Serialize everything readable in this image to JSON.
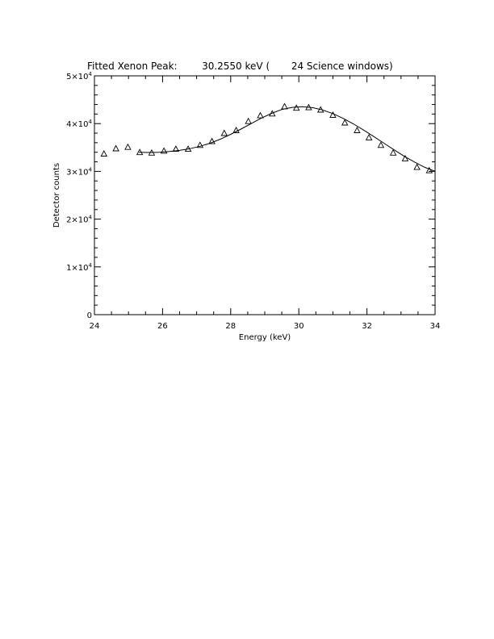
{
  "chart_data": {
    "type": "scatter",
    "title": "Fitted Xenon Peak:        30.2550 keV (       24 Science windows)",
    "xlabel": "Energy (keV)",
    "ylabel": "Detector counts",
    "xlim": [
      24,
      34
    ],
    "ylim": [
      0,
      50000
    ],
    "grid": false,
    "legend": "none",
    "x_ticks": [
      {
        "value": 24,
        "label": "24"
      },
      {
        "value": 26,
        "label": "26"
      },
      {
        "value": 28,
        "label": "28"
      },
      {
        "value": 30,
        "label": "30"
      },
      {
        "value": 32,
        "label": "32"
      },
      {
        "value": 34,
        "label": "34"
      }
    ],
    "y_ticks": [
      {
        "value": 0,
        "mantissa": "0",
        "base": "",
        "exp": ""
      },
      {
        "value": 10000,
        "mantissa": "1",
        "base": "×10",
        "exp": "4"
      },
      {
        "value": 20000,
        "mantissa": "2",
        "base": "×10",
        "exp": "4"
      },
      {
        "value": 30000,
        "mantissa": "3",
        "base": "×10",
        "exp": "4"
      },
      {
        "value": 40000,
        "mantissa": "4",
        "base": "×10",
        "exp": "4"
      },
      {
        "value": 50000,
        "mantissa": "5",
        "base": "×10",
        "exp": "4"
      }
    ],
    "series": [
      {
        "kind": "points",
        "marker": "triangle",
        "x": [
          24.28,
          24.63,
          24.98,
          25.33,
          25.68,
          26.04,
          26.39,
          26.75,
          27.1,
          27.45,
          27.81,
          28.16,
          28.52,
          28.87,
          29.22,
          29.58,
          29.93,
          30.29,
          30.64,
          31.0,
          31.35,
          31.71,
          32.06,
          32.41,
          32.77,
          33.12,
          33.47,
          33.83
        ],
        "y": [
          33700,
          34800,
          35100,
          34000,
          33900,
          34300,
          34700,
          34700,
          35500,
          36300,
          38000,
          38600,
          40500,
          41700,
          42100,
          43600,
          43300,
          43400,
          42900,
          41800,
          40200,
          38600,
          37100,
          35500,
          33900,
          32700,
          30900,
          30200
        ]
      },
      {
        "kind": "fit-line",
        "x": [
          25.3,
          25.6,
          25.9,
          26.2,
          26.5,
          26.8,
          27.1,
          27.4,
          27.7,
          28.0,
          28.3,
          28.6,
          28.9,
          29.2,
          29.5,
          29.8,
          30.1,
          30.4,
          30.7,
          31.0,
          31.3,
          31.6,
          31.9,
          32.2,
          32.5,
          32.8,
          33.1,
          33.4,
          33.7,
          34.0
        ],
        "y": [
          34000,
          33950,
          34000,
          34150,
          34400,
          34750,
          35250,
          35900,
          36750,
          37750,
          38850,
          40000,
          41150,
          42150,
          42950,
          43400,
          43550,
          43350,
          42850,
          42100,
          41100,
          39950,
          38650,
          37300,
          35900,
          34500,
          33150,
          31950,
          30850,
          30000
        ]
      }
    ]
  }
}
